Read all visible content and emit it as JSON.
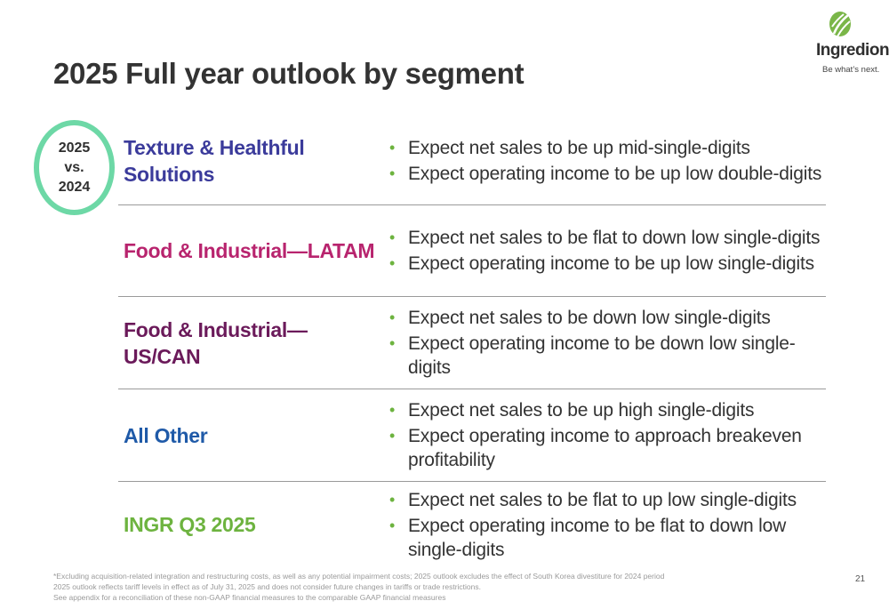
{
  "logo": {
    "name": "Ingredion",
    "tagline": "Be what’s next."
  },
  "title": "2025 Full year outlook by segment",
  "badge": {
    "line1": "2025",
    "line2": "vs.",
    "line3": "2024",
    "border_color": "#6dd8a6"
  },
  "segments": [
    {
      "name_lines": [
        "Texture & Healthful",
        "Solutions"
      ],
      "color": "#3b3b9b",
      "bullets": [
        "Expect net sales to be up mid-single-digits",
        "Expect operating income to be up low double-digits"
      ]
    },
    {
      "name_lines": [
        "Food & Industrial—LATAM"
      ],
      "color": "#b8246e",
      "bullets": [
        "Expect net sales to be flat to down low single-digits",
        "Expect operating income to be up low single-digits"
      ]
    },
    {
      "name_lines": [
        "Food & Industrial—US/CAN"
      ],
      "color": "#6b1a5a",
      "bullets": [
        "Expect net sales to be down low single-digits",
        "Expect operating income to be down low single-digits"
      ]
    },
    {
      "name_lines": [
        "All Other"
      ],
      "color": "#1f5aa8",
      "bullets": [
        "Expect net sales to be up high single-digits",
        "Expect operating income to approach breakeven profitability"
      ]
    },
    {
      "name_lines": [
        "INGR Q3 2025"
      ],
      "color": "#6db33f",
      "bullets": [
        "Expect net sales to be flat to up low single-digits",
        "Expect operating income to be flat to down low single-digits"
      ]
    }
  ],
  "footnotes": [
    "*Excluding acquisition-related integration and restructuring costs, as well as any potential impairment costs; 2025 outlook excludes the effect of South Korea divestiture for 2024 period",
    "2025 outlook reflects tariff levels in effect as of July 31, 2025 and does not consider future changes in tariffs or trade restrictions.",
    "See appendix for a reconciliation of these non-GAAP financial measures to the comparable GAAP financial measures"
  ],
  "page_number": "21"
}
